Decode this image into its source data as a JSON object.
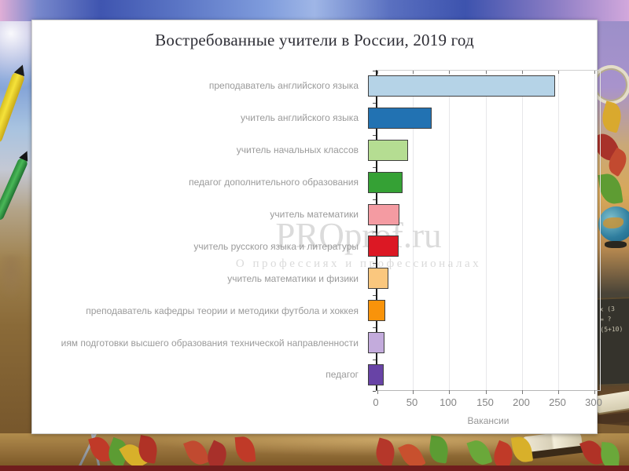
{
  "slide": {
    "title": "Востребованные учители в России, 2019 год"
  },
  "watermark": {
    "line1": "PROprof.ru",
    "line2": "О профессиях и профессионалах"
  },
  "chart_data": {
    "type": "bar",
    "orientation": "horizontal",
    "title": "Востребованные учители в России, 2019 год",
    "xlabel": "Вакансии",
    "xlim": [
      0,
      300
    ],
    "x_ticks": [
      0,
      50,
      100,
      150,
      200,
      250,
      300
    ],
    "grid": true,
    "legend": false,
    "categories": [
      "преподаватель английского языка",
      "учитель английского языка",
      "учитель начальных классов",
      "педагог дополнительного образования",
      "учитель математики",
      "учитель русского языка и литературы",
      "учитель математики и физики",
      "преподаватель кафедры теории и методики футбола и хоккея",
      "иям подготовки высшего образования технической направленности",
      "педагог"
    ],
    "values": [
      258,
      88,
      55,
      48,
      43,
      42,
      28,
      24,
      23,
      22
    ],
    "bar_colors": [
      "#b5d3e7",
      "#2272b2",
      "#b5dd92",
      "#35a135",
      "#f49ba2",
      "#dc1824",
      "#fac77e",
      "#f9930a",
      "#c3abdc",
      "#6843a6"
    ]
  },
  "decor": {
    "chalkboard_fragments": [
      "х (3",
      "= ?",
      "(5+10)"
    ]
  }
}
